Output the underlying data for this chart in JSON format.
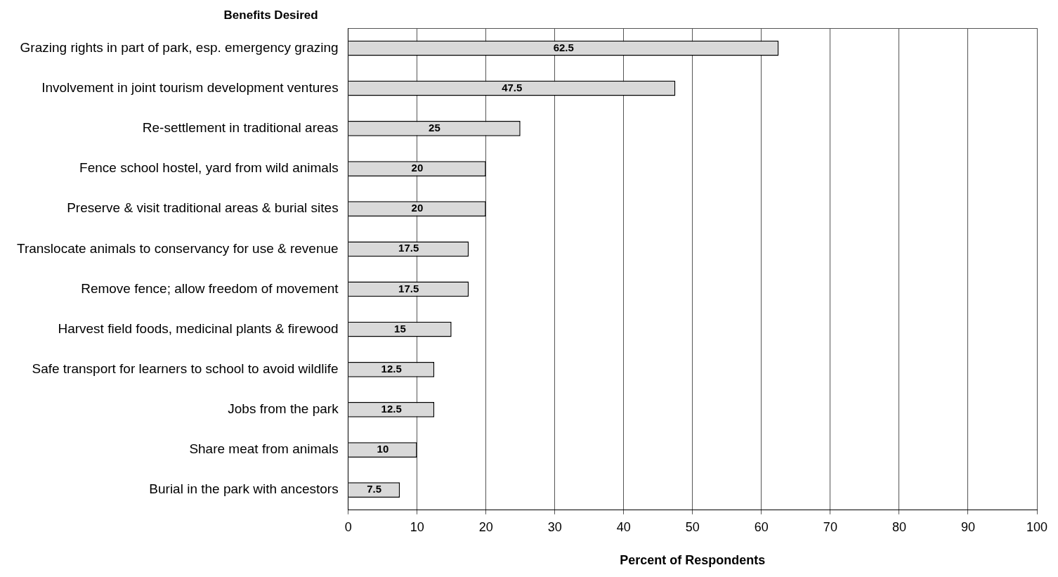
{
  "chart_data": {
    "type": "bar",
    "orientation": "horizontal",
    "ylabel": "Benefits Desired",
    "xlabel": "Percent of Respondents",
    "categories": [
      "Grazing rights in part of park, esp. emergency grazing",
      "Involvement in joint tourism development ventures",
      "Re-settlement in traditional areas",
      "Fence school hostel, yard from wild animals",
      "Preserve & visit traditional areas & burial sites",
      "Translocate animals to conservancy for use & revenue",
      "Remove fence; allow freedom of movement",
      "Harvest field foods, medicinal plants & firewood",
      "Safe transport for learners to school to avoid wildlife",
      "Jobs from the park",
      "Share meat from animals",
      "Burial in the park with ancestors"
    ],
    "values": [
      62.5,
      47.5,
      25,
      20,
      20,
      17.5,
      17.5,
      15,
      12.5,
      12.5,
      10,
      7.5
    ],
    "color": "#d9d9d9",
    "xlim": [
      0,
      100
    ],
    "xticks": [
      0,
      10,
      20,
      30,
      40,
      50,
      60,
      70,
      80,
      90,
      100
    ],
    "grid": "x",
    "data_labels": true,
    "legend": false
  }
}
